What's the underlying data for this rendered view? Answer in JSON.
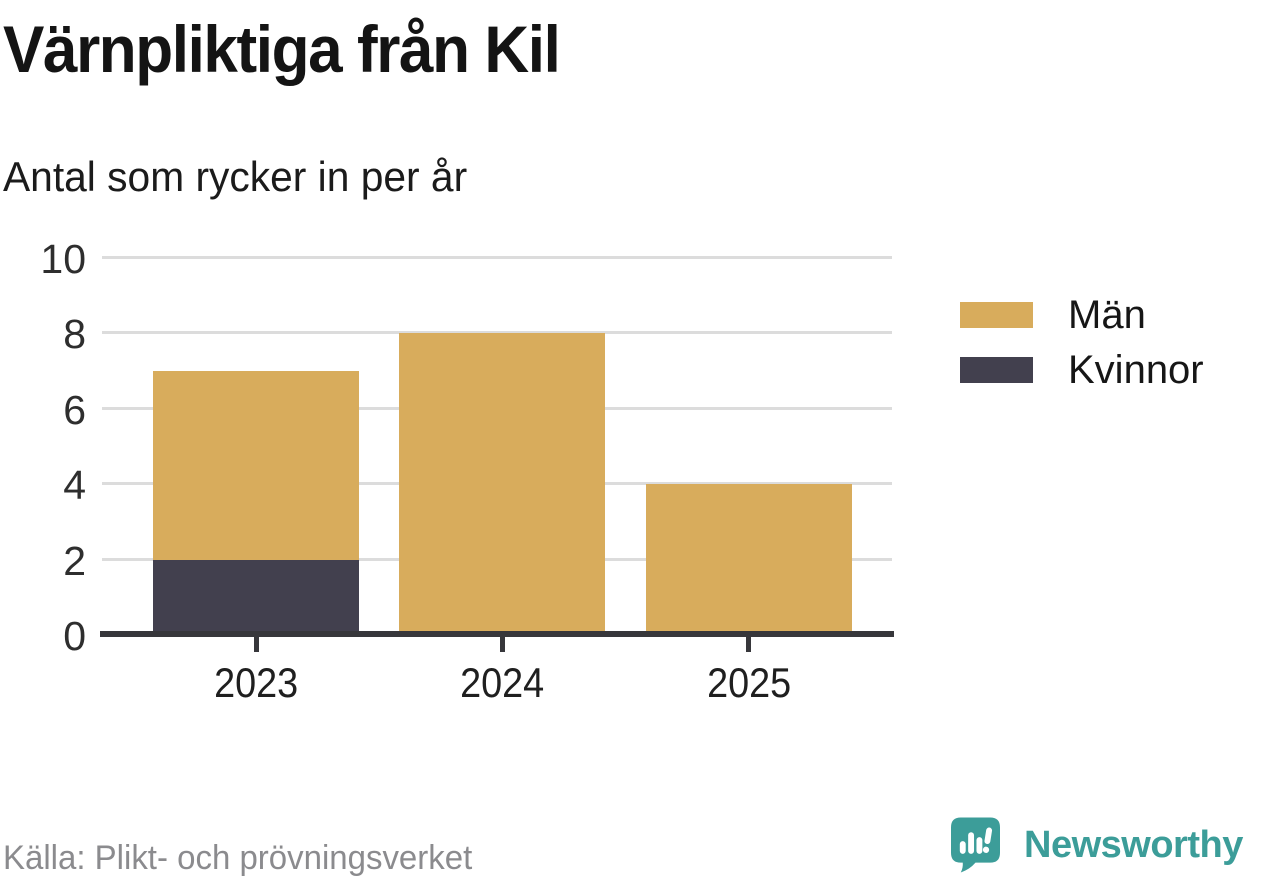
{
  "chart_data": {
    "type": "bar",
    "stacked": true,
    "title": "Värnpliktiga från Kil",
    "subtitle": "Antal som rycker in per år",
    "categories": [
      "2023",
      "2024",
      "2025"
    ],
    "series": [
      {
        "name": "Män",
        "color": "#D8AC5C",
        "values": [
          5,
          8,
          4
        ]
      },
      {
        "name": "Kvinnor",
        "color": "#42404E",
        "values": [
          2,
          0,
          0
        ]
      }
    ],
    "stacked_totals": [
      7,
      8,
      4
    ],
    "ylim": [
      0,
      10
    ],
    "yticks": [
      0,
      2,
      4,
      6,
      8,
      10
    ],
    "grid": true,
    "legend_position": "right",
    "gridline_color": "#DCDCDC",
    "axis_color": "#37373B"
  },
  "footer": {
    "source": "Källa: Plikt- och prövningsverket",
    "brand": "Newsworthy"
  }
}
